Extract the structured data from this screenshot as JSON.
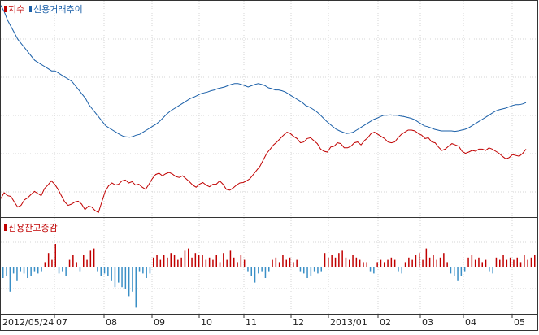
{
  "chart_data": [
    {
      "type": "line",
      "legend_position": "top-left",
      "grid": true,
      "series": [
        {
          "name": "지수",
          "color": "#c00000",
          "values": [
            0.38,
            0.52,
            0.45,
            0.43,
            0.3,
            0.18,
            0.22,
            0.35,
            0.4,
            0.48,
            0.55,
            0.5,
            0.45,
            0.62,
            0.7,
            0.8,
            0.72,
            0.6,
            0.45,
            0.3,
            0.22,
            0.25,
            0.3,
            0.32,
            0.25,
            0.12,
            0.2,
            0.18,
            0.1,
            0.05,
            0.3,
            0.55,
            0.68,
            0.75,
            0.7,
            0.72,
            0.8,
            0.82,
            0.75,
            0.78,
            0.7,
            0.72,
            0.65,
            0.6,
            0.72,
            0.85,
            0.95,
            0.98,
            0.92,
            0.97,
            1.0,
            0.96,
            0.9,
            0.88,
            0.92,
            0.85,
            0.78,
            0.7,
            0.65,
            0.72,
            0.76,
            0.7,
            0.66,
            0.72,
            0.72,
            0.8,
            0.72,
            0.6,
            0.58,
            0.63,
            0.7,
            0.75,
            0.76,
            0.8,
            0.85,
            0.95,
            1.05,
            1.15,
            1.3,
            1.45,
            1.55,
            1.65,
            1.72,
            1.8,
            1.88,
            1.95,
            1.92,
            1.85,
            1.8,
            1.7,
            1.72,
            1.8,
            1.82,
            1.75,
            1.68,
            1.55,
            1.5,
            1.48,
            1.6,
            1.62,
            1.7,
            1.68,
            1.58,
            1.58,
            1.62,
            1.7,
            1.72,
            1.65,
            1.75,
            1.82,
            1.92,
            1.95,
            1.9,
            1.85,
            1.8,
            1.72,
            1.7,
            1.72,
            1.82,
            1.9,
            1.95,
            2.0,
            2.0,
            1.98,
            1.92,
            1.88,
            1.8,
            1.82,
            1.72,
            1.7,
            1.6,
            1.52,
            1.55,
            1.62,
            1.68,
            1.65,
            1.62,
            1.5,
            1.45,
            1.48,
            1.52,
            1.5,
            1.55,
            1.55,
            1.52,
            1.58,
            1.55,
            1.5,
            1.45,
            1.38,
            1.32,
            1.35,
            1.42,
            1.4,
            1.38,
            1.45,
            1.55
          ]
        },
        {
          "name": "신용거래추이",
          "color": "#1a5fa8",
          "values": [
            4.95,
            4.8,
            4.6,
            4.45,
            4.3,
            4.15,
            4.05,
            3.95,
            3.85,
            3.75,
            3.65,
            3.6,
            3.55,
            3.5,
            3.45,
            3.4,
            3.4,
            3.35,
            3.3,
            3.25,
            3.2,
            3.15,
            3.05,
            2.95,
            2.85,
            2.75,
            2.6,
            2.5,
            2.4,
            2.3,
            2.2,
            2.1,
            2.05,
            2.0,
            1.95,
            1.9,
            1.86,
            1.84,
            1.83,
            1.85,
            1.88,
            1.9,
            1.95,
            2.0,
            2.05,
            2.1,
            2.15,
            2.22,
            2.3,
            2.38,
            2.45,
            2.5,
            2.55,
            2.6,
            2.65,
            2.7,
            2.75,
            2.78,
            2.82,
            2.86,
            2.88,
            2.9,
            2.93,
            2.95,
            2.98,
            3.0,
            3.02,
            3.05,
            3.08,
            3.1,
            3.1,
            3.08,
            3.05,
            3.02,
            3.05,
            3.08,
            3.1,
            3.08,
            3.05,
            3.0,
            2.98,
            2.95,
            2.95,
            2.93,
            2.9,
            2.85,
            2.8,
            2.75,
            2.7,
            2.65,
            2.58,
            2.55,
            2.5,
            2.45,
            2.38,
            2.3,
            2.22,
            2.15,
            2.08,
            2.02,
            1.98,
            1.95,
            1.92,
            1.93,
            1.95,
            2.0,
            2.05,
            2.1,
            2.15,
            2.2,
            2.25,
            2.28,
            2.32,
            2.35,
            2.35,
            2.36,
            2.35,
            2.35,
            2.33,
            2.32,
            2.3,
            2.28,
            2.25,
            2.2,
            2.15,
            2.1,
            2.08,
            2.05,
            2.02,
            2.0,
            1.98,
            1.98,
            1.98,
            1.98,
            1.97,
            1.98,
            2.0,
            2.02,
            2.05,
            2.1,
            2.15,
            2.2,
            2.25,
            2.3,
            2.35,
            2.4,
            2.45,
            2.48,
            2.5,
            2.52,
            2.55,
            2.58,
            2.6,
            2.6,
            2.62,
            2.65
          ]
        }
      ]
    },
    {
      "type": "bar",
      "legend_position": "top-left",
      "grid": true,
      "series": [
        {
          "name": "신용잔고증감",
          "color_positive": "#c00000",
          "color_negative": "#3a8fc6",
          "values": [
            -0.5,
            -0.4,
            -1.1,
            -0.3,
            -0.6,
            -0.2,
            -0.3,
            -0.5,
            -0.4,
            -0.2,
            -0.3,
            -0.2,
            0.2,
            0.6,
            0.3,
            1.0,
            -0.3,
            -0.2,
            -0.4,
            0.3,
            0.5,
            0.2,
            -0.2,
            0.5,
            0.3,
            0.7,
            0.8,
            -0.2,
            -0.4,
            -0.3,
            -0.4,
            -0.6,
            -0.9,
            -0.7,
            -0.9,
            -1.0,
            -1.3,
            -1.1,
            -1.8,
            -0.2,
            -0.3,
            -0.5,
            -0.3,
            0.4,
            0.5,
            0.3,
            0.5,
            0.4,
            0.6,
            0.5,
            0.3,
            0.4,
            0.7,
            0.8,
            0.4,
            0.6,
            0.5,
            0.5,
            0.3,
            0.4,
            0.3,
            0.5,
            0.2,
            0.6,
            0.3,
            0.7,
            0.4,
            0.2,
            0.5,
            0.3,
            -0.2,
            -0.4,
            -0.7,
            -0.3,
            -0.2,
            -0.5,
            -0.2,
            0.3,
            0.4,
            0.2,
            0.5,
            0.3,
            0.4,
            0.2,
            0.3,
            -0.2,
            -0.3,
            -0.5,
            -0.4,
            -0.2,
            -0.3,
            -0.2,
            0.6,
            0.4,
            0.5,
            0.4,
            0.6,
            0.7,
            0.4,
            0.3,
            0.5,
            0.4,
            0.3,
            0.2,
            0.2,
            -0.2,
            -0.3,
            0.2,
            0.3,
            0.2,
            0.3,
            0.4,
            0.3,
            -0.2,
            -0.3,
            0.2,
            0.4,
            0.3,
            0.5,
            0.6,
            0.3,
            0.8,
            0.4,
            0.5,
            0.3,
            0.4,
            0.6,
            0.2,
            -0.3,
            -0.4,
            -0.6,
            -0.4,
            -0.2,
            0.4,
            0.5,
            0.3,
            0.4,
            0.2,
            0.3,
            -0.2,
            -0.3,
            0.4,
            0.3,
            0.5,
            0.3,
            0.4,
            0.3,
            0.4,
            0.2,
            0.5,
            0.3,
            0.4,
            0.5
          ]
        }
      ]
    }
  ],
  "x_tick_labels": [
    "2012/05/24",
    "07",
    "08",
    "09",
    "10",
    "11",
    "12",
    "2013/01",
    "02",
    "03",
    "04",
    "05"
  ]
}
